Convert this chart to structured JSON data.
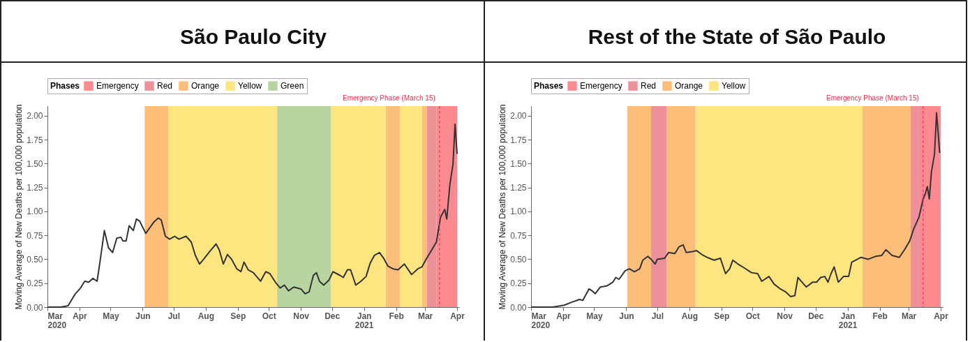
{
  "chart_data": [
    {
      "type": "line",
      "title": "São Paulo City",
      "ylabel": "Moving Average of New Deaths per 100,000 population",
      "legend_title": "Phases",
      "legend": "top",
      "xlim": [
        "2020-03-01",
        "2021-04-03"
      ],
      "xticks": [
        {
          "value": "2020-03-01",
          "label": "Mar\n2020"
        },
        {
          "value": "2020-04-01",
          "label": "Apr"
        },
        {
          "value": "2020-05-01",
          "label": "May"
        },
        {
          "value": "2020-06-01",
          "label": "Jun"
        },
        {
          "value": "2020-07-01",
          "label": "Jul"
        },
        {
          "value": "2020-08-01",
          "label": "Aug"
        },
        {
          "value": "2020-09-01",
          "label": "Sep"
        },
        {
          "value": "2020-10-01",
          "label": "Oct"
        },
        {
          "value": "2020-11-01",
          "label": "Nov"
        },
        {
          "value": "2020-12-01",
          "label": "Dec"
        },
        {
          "value": "2021-01-01",
          "label": "Jan\n2021"
        },
        {
          "value": "2021-02-01",
          "label": "Feb"
        },
        {
          "value": "2021-03-01",
          "label": "Mar"
        },
        {
          "value": "2021-04-01",
          "label": "Apr"
        }
      ],
      "ylim": [
        0,
        2.1
      ],
      "yticks": [
        {
          "value": 0,
          "label": "0.00"
        },
        {
          "value": 0.25,
          "label": "0.25"
        },
        {
          "value": 0.5,
          "label": "0.50"
        },
        {
          "value": 0.75,
          "label": "0.75"
        },
        {
          "value": 1,
          "label": "1.00"
        },
        {
          "value": 1.25,
          "label": "1.25"
        },
        {
          "value": 1.5,
          "label": "1.50"
        },
        {
          "value": 1.75,
          "label": "1.75"
        },
        {
          "value": 2,
          "label": "2.00"
        }
      ],
      "bands": [
        {
          "axis": "x",
          "from": "2021-03-12",
          "to": "2021-04-01",
          "label": "Emergency",
          "color": "#fd8a8f"
        },
        {
          "axis": "x",
          "from": "2021-03-03",
          "to": "2021-03-12",
          "label": "Red",
          "color": "#ec9099"
        },
        {
          "axis": "x",
          "from": "2020-06-03",
          "to": "2020-06-26",
          "label": "Orange",
          "color": "#fdbe79"
        },
        {
          "axis": "x",
          "from": "2021-01-22",
          "to": "2021-02-05",
          "color": "#fdbe79"
        },
        {
          "axis": "x",
          "from": "2021-02-26",
          "to": "2021-03-03",
          "color": "#fdbe79"
        },
        {
          "axis": "x",
          "from": "2020-06-26",
          "to": "2020-10-09",
          "label": "Yellow",
          "color": "#fde580"
        },
        {
          "axis": "x",
          "from": "2020-11-30",
          "to": "2021-01-22",
          "color": "#fde580"
        },
        {
          "axis": "x",
          "from": "2021-02-05",
          "to": "2021-02-26",
          "color": "#fde580"
        },
        {
          "axis": "x",
          "from": "2020-10-09",
          "to": "2020-11-30",
          "label": "Green",
          "color": "#b8d5a1"
        }
      ],
      "ref_lines": [
        {
          "axis": "x",
          "value": "2021-03-15",
          "label": "Emergency Phase (March 15)",
          "color": "#e8304a",
          "line_style": "dashed"
        }
      ],
      "x": [
        "2020-03-01",
        "2020-03-14",
        "2020-03-21",
        "2020-03-24",
        "2020-03-28",
        "2020-04-02",
        "2020-04-06",
        "2020-04-10",
        "2020-04-14",
        "2020-04-18",
        "2020-04-21",
        "2020-04-25",
        "2020-04-29",
        "2020-05-03",
        "2020-05-07",
        "2020-05-11",
        "2020-05-13",
        "2020-05-16",
        "2020-05-19",
        "2020-05-23",
        "2020-05-26",
        "2020-05-29",
        "2020-06-04",
        "2020-06-08",
        "2020-06-12",
        "2020-06-16",
        "2020-06-19",
        "2020-06-23",
        "2020-06-27",
        "2020-07-02",
        "2020-07-06",
        "2020-07-13",
        "2020-07-18",
        "2020-07-22",
        "2020-07-26",
        "2020-07-30",
        "2020-08-04",
        "2020-08-11",
        "2020-08-14",
        "2020-08-18",
        "2020-08-22",
        "2020-08-26",
        "2020-08-31",
        "2020-09-04",
        "2020-09-07",
        "2020-09-11",
        "2020-09-16",
        "2020-09-23",
        "2020-09-28",
        "2020-10-02",
        "2020-10-08",
        "2020-10-12",
        "2020-10-16",
        "2020-10-20",
        "2020-10-25",
        "2020-11-01",
        "2020-11-05",
        "2020-11-09",
        "2020-11-13",
        "2020-11-16",
        "2020-11-19",
        "2020-11-23",
        "2020-11-28",
        "2020-12-02",
        "2020-12-09",
        "2020-12-12",
        "2020-12-16",
        "2020-12-19",
        "2020-12-24",
        "2020-12-29",
        "2021-01-03",
        "2021-01-07",
        "2021-01-11",
        "2021-01-16",
        "2021-01-20",
        "2021-01-24",
        "2021-01-29",
        "2021-02-03",
        "2021-02-09",
        "2021-02-16",
        "2021-02-22",
        "2021-02-26",
        "2021-03-02",
        "2021-03-06",
        "2021-03-12",
        "2021-03-16",
        "2021-03-20",
        "2021-03-22",
        "2021-03-25",
        "2021-03-28",
        "2021-03-30",
        "2021-04-01"
      ],
      "series": [
        {
          "color": "#333333",
          "values": [
            0,
            0,
            0.015,
            0.07,
            0.14,
            0.2,
            0.27,
            0.26,
            0.3,
            0.27,
            0.49,
            0.8,
            0.62,
            0.57,
            0.72,
            0.73,
            0.69,
            0.69,
            0.85,
            0.8,
            0.92,
            0.9,
            0.77,
            0.83,
            0.89,
            0.93,
            0.91,
            0.74,
            0.71,
            0.74,
            0.71,
            0.74,
            0.68,
            0.54,
            0.45,
            0.5,
            0.57,
            0.66,
            0.6,
            0.45,
            0.55,
            0.5,
            0.4,
            0.37,
            0.47,
            0.39,
            0.36,
            0.27,
            0.37,
            0.35,
            0.25,
            0.2,
            0.23,
            0.17,
            0.21,
            0.19,
            0.14,
            0.16,
            0.33,
            0.36,
            0.27,
            0.23,
            0.28,
            0.37,
            0.33,
            0.31,
            0.39,
            0.39,
            0.23,
            0.27,
            0.32,
            0.46,
            0.54,
            0.57,
            0.51,
            0.43,
            0.4,
            0.39,
            0.45,
            0.34,
            0.4,
            0.42,
            0.5,
            0.57,
            0.68,
            0.94,
            1.02,
            0.92,
            1.28,
            1.49,
            1.91,
            1.6
          ]
        }
      ]
    },
    {
      "type": "line",
      "title": "Rest of the State of São Paulo",
      "ylabel": "Moving Average of New Deaths per 100,000 population",
      "legend_title": "Phases",
      "legend": "top",
      "xlim": [
        "2020-03-01",
        "2021-04-03"
      ],
      "xticks": [
        {
          "value": "2020-03-01",
          "label": "Mar\n2020"
        },
        {
          "value": "2020-04-01",
          "label": "Apr"
        },
        {
          "value": "2020-05-01",
          "label": "May"
        },
        {
          "value": "2020-06-01",
          "label": "Jun"
        },
        {
          "value": "2020-07-01",
          "label": "Jul"
        },
        {
          "value": "2020-08-01",
          "label": "Aug"
        },
        {
          "value": "2020-09-01",
          "label": "Sep"
        },
        {
          "value": "2020-10-01",
          "label": "Oct"
        },
        {
          "value": "2020-11-01",
          "label": "Nov"
        },
        {
          "value": "2020-12-01",
          "label": "Dec"
        },
        {
          "value": "2021-01-01",
          "label": "Jan\n2021"
        },
        {
          "value": "2021-02-01",
          "label": "Feb"
        },
        {
          "value": "2021-03-01",
          "label": "Mar"
        },
        {
          "value": "2021-04-01",
          "label": "Apr"
        }
      ],
      "ylim": [
        0,
        2.1
      ],
      "yticks": [
        {
          "value": 0,
          "label": "0.00"
        },
        {
          "value": 0.25,
          "label": "0.25"
        },
        {
          "value": 0.5,
          "label": "0.50"
        },
        {
          "value": 0.75,
          "label": "0.75"
        },
        {
          "value": 1,
          "label": "1.00"
        },
        {
          "value": 1.25,
          "label": "1.25"
        },
        {
          "value": 1.5,
          "label": "1.50"
        },
        {
          "value": 1.75,
          "label": "1.75"
        },
        {
          "value": 2,
          "label": "2.00"
        }
      ],
      "bands": [
        {
          "axis": "x",
          "from": "2021-03-11",
          "to": "2021-04-01",
          "label": "Emergency",
          "color": "#fd8a8f"
        },
        {
          "axis": "x",
          "from": "2020-06-25",
          "to": "2020-07-10",
          "label": "Red",
          "color": "#ec9099"
        },
        {
          "axis": "x",
          "from": "2021-03-03",
          "to": "2021-03-11",
          "color": "#ec9099"
        },
        {
          "axis": "x",
          "from": "2020-06-02",
          "to": "2020-06-25",
          "label": "Orange",
          "color": "#fdbe79"
        },
        {
          "axis": "x",
          "from": "2020-07-10",
          "to": "2020-08-07",
          "color": "#fdbe79"
        },
        {
          "axis": "x",
          "from": "2021-01-15",
          "to": "2021-03-03",
          "color": "#fdbe79"
        },
        {
          "axis": "x",
          "from": "2020-08-07",
          "to": "2021-01-15",
          "label": "Yellow",
          "color": "#fde580"
        }
      ],
      "ref_lines": [
        {
          "axis": "x",
          "value": "2021-03-15",
          "label": "Emergency Phase (March 15)",
          "color": "#e8304a",
          "line_style": "dashed"
        }
      ],
      "x": [
        "2020-03-01",
        "2020-03-22",
        "2020-04-02",
        "2020-04-09",
        "2020-04-17",
        "2020-04-20",
        "2020-04-26",
        "2020-04-29",
        "2020-05-02",
        "2020-05-07",
        "2020-05-13",
        "2020-05-19",
        "2020-05-22",
        "2020-05-25",
        "2020-05-31",
        "2020-06-04",
        "2020-06-09",
        "2020-06-14",
        "2020-06-17",
        "2020-06-22",
        "2020-06-25",
        "2020-06-29",
        "2020-07-01",
        "2020-07-08",
        "2020-07-12",
        "2020-07-18",
        "2020-07-22",
        "2020-07-26",
        "2020-07-29",
        "2020-08-04",
        "2020-08-08",
        "2020-08-13",
        "2020-08-18",
        "2020-08-25",
        "2020-08-31",
        "2020-09-05",
        "2020-09-09",
        "2020-09-12",
        "2020-09-17",
        "2020-09-23",
        "2020-09-30",
        "2020-10-06",
        "2020-10-10",
        "2020-10-17",
        "2020-10-22",
        "2020-10-28",
        "2020-11-02",
        "2020-11-07",
        "2020-11-11",
        "2020-11-14",
        "2020-11-18",
        "2020-11-22",
        "2020-11-28",
        "2020-12-02",
        "2020-12-06",
        "2020-12-10",
        "2020-12-13",
        "2020-12-16",
        "2020-12-19",
        "2020-12-23",
        "2020-12-28",
        "2021-01-02",
        "2021-01-05",
        "2021-01-14",
        "2021-01-21",
        "2021-01-28",
        "2021-02-03",
        "2021-02-07",
        "2021-02-13",
        "2021-02-20",
        "2021-02-25",
        "2021-03-02",
        "2021-03-06",
        "2021-03-11",
        "2021-03-15",
        "2021-03-17",
        "2021-03-19",
        "2021-03-21",
        "2021-03-23",
        "2021-03-26",
        "2021-03-28",
        "2021-03-31"
      ],
      "series": [
        {
          "color": "#333333",
          "values": [
            0,
            0,
            0.02,
            0.05,
            0.08,
            0.07,
            0.19,
            0.17,
            0.14,
            0.21,
            0.22,
            0.26,
            0.31,
            0.29,
            0.38,
            0.4,
            0.37,
            0.4,
            0.49,
            0.53,
            0.5,
            0.45,
            0.5,
            0.51,
            0.57,
            0.56,
            0.63,
            0.65,
            0.57,
            0.58,
            0.59,
            0.55,
            0.52,
            0.49,
            0.51,
            0.35,
            0.4,
            0.49,
            0.45,
            0.41,
            0.36,
            0.35,
            0.27,
            0.32,
            0.24,
            0.19,
            0.16,
            0.11,
            0.12,
            0.31,
            0.26,
            0.21,
            0.26,
            0.26,
            0.31,
            0.32,
            0.26,
            0.35,
            0.42,
            0.26,
            0.32,
            0.32,
            0.47,
            0.52,
            0.5,
            0.53,
            0.54,
            0.6,
            0.54,
            0.52,
            0.6,
            0.69,
            0.82,
            0.94,
            1.13,
            1.18,
            1.26,
            1.13,
            1.41,
            1.6,
            2.03,
            1.61
          ]
        }
      ]
    }
  ]
}
